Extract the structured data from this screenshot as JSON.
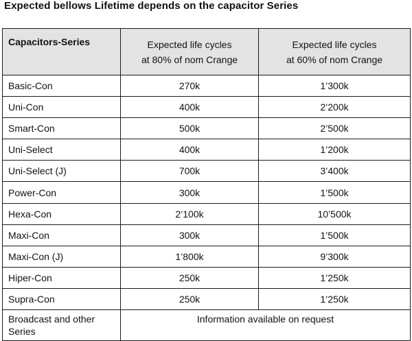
{
  "title": "Expected bellows Lifetime depends on the capacitor Series",
  "table": {
    "headers": {
      "series": "Capacitors-Series",
      "col2_line1": "Expected life cycles",
      "col2_line2": "at 80% of nom Crange",
      "col3_line1": "Expected life cycles",
      "col3_line2": "at 60% of nom Crange"
    },
    "rows": [
      {
        "series": "Basic-Con",
        "at80": "270k",
        "at60": "1’300k"
      },
      {
        "series": "Uni-Con",
        "at80": "400k",
        "at60": "2’200k"
      },
      {
        "series": "Smart-Con",
        "at80": "500k",
        "at60": "2’500k"
      },
      {
        "series": "Uni-Select",
        "at80": "400k",
        "at60": "1’200k"
      },
      {
        "series": "Uni-Select (J)",
        "at80": "700k",
        "at60": "3’400k"
      },
      {
        "series": "Power-Con",
        "at80": "300k",
        "at60": "1’500k"
      },
      {
        "series": "Hexa-Con",
        "at80": "2’100k",
        "at60": "10’500k"
      },
      {
        "series": "Maxi-Con",
        "at80": "300k",
        "at60": "1’500k"
      },
      {
        "series": "Maxi-Con (J)",
        "at80": "1’800k",
        "at60": "9’300k"
      },
      {
        "series": "Hiper-Con",
        "at80": "250k",
        "at60": "1’250k"
      },
      {
        "series": "Supra-Con",
        "at80": "250k",
        "at60": "1’250k"
      }
    ],
    "last_row": {
      "series_line1": "Broadcast and other",
      "series_line2": "Series",
      "info": "Information available on request"
    }
  }
}
